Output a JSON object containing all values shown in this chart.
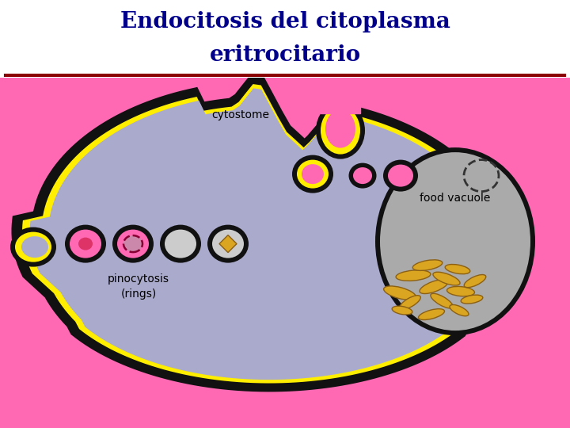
{
  "title_line1": "Endocitosis del citoplasma",
  "title_line2": "eritrocitario",
  "title_color": "#00008B",
  "title_fontsize": 20,
  "bg_color_top": "#FFFFFF",
  "bg_color_diagram": "#FF69B4",
  "separator_color": "#8B0000",
  "label_cytostome": "cytostome",
  "label_food_vacuole": "food vacuole",
  "label_pinocytosis": "pinocytosis\n(rings)",
  "cell_fill": "#AAAACC",
  "cell_outline_black": "#111111",
  "cell_outline_yellow": "#FFEE00",
  "vacuole_fill": "#AAAAAA",
  "pink_fill": "#FF69B4",
  "pink_dark": "#DD3366",
  "golden": "#DAA520",
  "golden_edge": "#8B6014"
}
